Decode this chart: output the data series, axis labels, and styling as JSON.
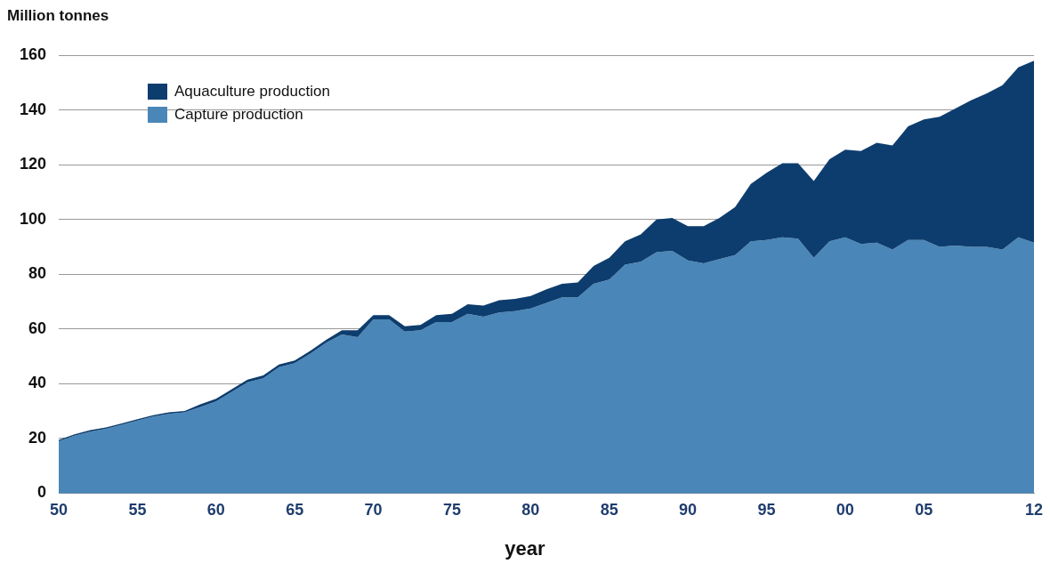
{
  "chart_data": {
    "type": "area",
    "ylabel": "Million tonnes",
    "xlabel": "year",
    "stacked": true,
    "x": [
      1950,
      1951,
      1952,
      1953,
      1954,
      1955,
      1956,
      1957,
      1958,
      1959,
      1960,
      1961,
      1962,
      1963,
      1964,
      1965,
      1966,
      1967,
      1968,
      1969,
      1970,
      1971,
      1972,
      1973,
      1974,
      1975,
      1976,
      1977,
      1978,
      1979,
      1980,
      1981,
      1982,
      1983,
      1984,
      1985,
      1986,
      1987,
      1988,
      1989,
      1990,
      1991,
      1992,
      1993,
      1994,
      1995,
      1996,
      1997,
      1998,
      1999,
      2000,
      2001,
      2002,
      2003,
      2004,
      2005,
      2006,
      2007,
      2008,
      2009,
      2010,
      2011,
      2012
    ],
    "series": [
      {
        "name": "Capture production",
        "color": "#4a86b8",
        "values": [
          19,
          21,
          22.5,
          23.5,
          25,
          26.5,
          28,
          29,
          29.5,
          31.5,
          33.5,
          37,
          40.5,
          42,
          46,
          47.5,
          51,
          55,
          58,
          57,
          63.5,
          63.5,
          59,
          59.5,
          62.5,
          62.5,
          65.5,
          64.5,
          66,
          66.5,
          67.5,
          69.5,
          71.5,
          71.5,
          76.5,
          78,
          83.5,
          84.5,
          88,
          88.5,
          85,
          84,
          85.5,
          87,
          92,
          92.5,
          93.5,
          93,
          86,
          92,
          93.5,
          91,
          91.5,
          89,
          92.5,
          92.5,
          90,
          90.5,
          90,
          90,
          89,
          93.5,
          91.5
        ]
      },
      {
        "name": "Aquaculture production",
        "color": "#0d3d6e",
        "values": [
          0.5,
          0.5,
          0.5,
          0.5,
          0.5,
          0.5,
          0.5,
          0.5,
          0.5,
          1,
          1,
          1,
          1,
          1,
          1,
          1,
          1,
          1,
          1.5,
          2.5,
          1.5,
          1.5,
          2,
          2,
          2.5,
          3,
          3.5,
          4,
          4.5,
          4.5,
          4.5,
          5,
          5,
          5.5,
          6.5,
          8,
          8.5,
          10,
          12,
          12,
          12.5,
          13.5,
          15,
          17.5,
          21,
          24.5,
          27,
          27.5,
          28,
          30,
          32,
          34,
          36.5,
          38,
          41.5,
          44,
          47.5,
          50,
          53.5,
          56,
          60,
          62,
          66.5
        ]
      }
    ],
    "xlim": [
      1950,
      2012
    ],
    "xticks": [
      {
        "value": 1950,
        "label": "50"
      },
      {
        "value": 1955,
        "label": "55"
      },
      {
        "value": 1960,
        "label": "60"
      },
      {
        "value": 1965,
        "label": "65"
      },
      {
        "value": 1970,
        "label": "70"
      },
      {
        "value": 1975,
        "label": "75"
      },
      {
        "value": 1980,
        "label": "80"
      },
      {
        "value": 1985,
        "label": "85"
      },
      {
        "value": 1990,
        "label": "90"
      },
      {
        "value": 1995,
        "label": "95"
      },
      {
        "value": 2000,
        "label": "00"
      },
      {
        "value": 2005,
        "label": "05"
      },
      {
        "value": 2012,
        "label": "12"
      }
    ],
    "ylim": [
      0,
      160
    ],
    "yticks": [
      0,
      20,
      40,
      60,
      80,
      100,
      120,
      140,
      160
    ],
    "grid": "y",
    "legend": "top left"
  }
}
